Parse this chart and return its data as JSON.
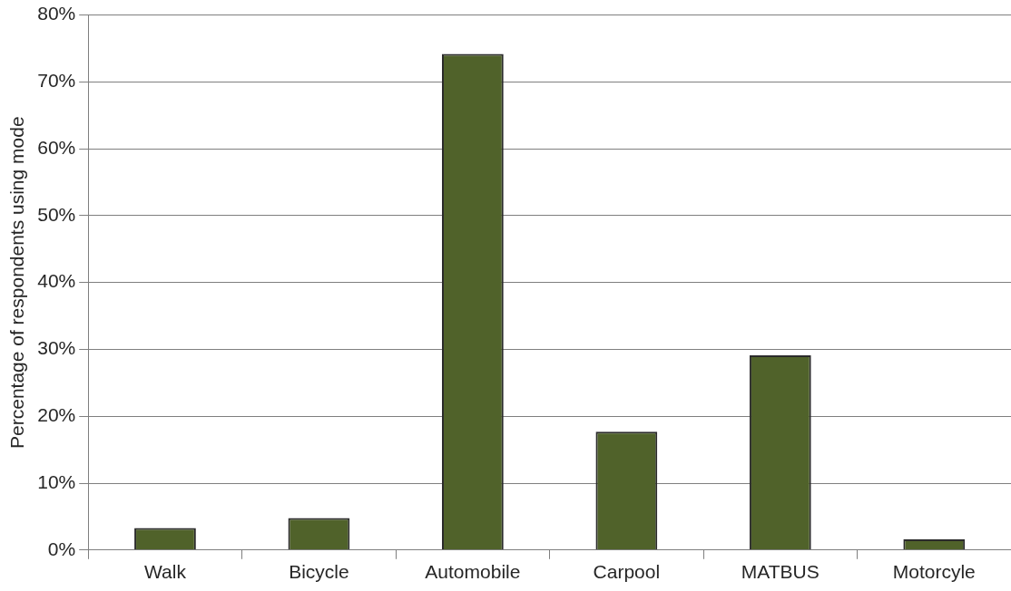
{
  "chart_data": {
    "type": "bar",
    "ylabel": "Percentage of respondents using mode",
    "categories": [
      "Walk",
      "Bicycle",
      "Automobile",
      "Carpool",
      "MATBUS",
      "Motorcyle"
    ],
    "values": [
      3.3,
      4.8,
      74.2,
      17.7,
      29.1,
      1.6
    ],
    "color": "#50622a",
    "ylim": [
      0,
      80
    ],
    "yticks": [
      {
        "value": 0,
        "label": "0%"
      },
      {
        "value": 10,
        "label": "10%"
      },
      {
        "value": 20,
        "label": "20%"
      },
      {
        "value": 30,
        "label": "30%"
      },
      {
        "value": 40,
        "label": "40%"
      },
      {
        "value": 50,
        "label": "50%"
      },
      {
        "value": 60,
        "label": "60%"
      },
      {
        "value": 70,
        "label": "70%"
      },
      {
        "value": 80,
        "label": "80%"
      }
    ],
    "grid": "y",
    "legend": false
  }
}
